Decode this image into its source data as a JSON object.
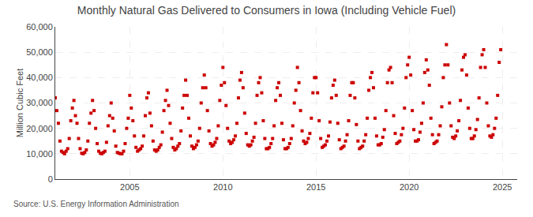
{
  "chart_data": {
    "type": "scatter",
    "title": "Monthly Natural Gas Delivered to Consumers in Iowa (Including Vehicle Fuel)",
    "ylabel": "Million Cubic Feet",
    "annotations": [
      "Source: U.S. Energy Information Administration"
    ],
    "color": "#cc0000",
    "marker": "square",
    "grid": true,
    "xlim": [
      2001.0,
      2025.8
    ],
    "xticks": [
      2005,
      2010,
      2015,
      2020,
      2025
    ],
    "ylim": [
      0,
      60000
    ],
    "yticks": [
      0,
      {
        "value": 10000,
        "label": "10,000"
      },
      {
        "value": 20000,
        "label": "20,000"
      },
      {
        "value": 30000,
        "label": "30,000"
      },
      {
        "value": 40000,
        "label": "40,000"
      },
      {
        "value": 50000,
        "label": "50,000"
      },
      {
        "value": 60000,
        "label": "60,000"
      }
    ],
    "x": [
      2001.0,
      2001.083,
      2001.167,
      2001.25,
      2001.333,
      2001.417,
      2001.5,
      2001.583,
      2001.667,
      2001.75,
      2001.833,
      2001.917,
      2002.0,
      2002.083,
      2002.167,
      2002.25,
      2002.333,
      2002.417,
      2002.5,
      2002.583,
      2002.667,
      2002.75,
      2002.833,
      2002.917,
      2003.0,
      2003.083,
      2003.167,
      2003.25,
      2003.333,
      2003.417,
      2003.5,
      2003.583,
      2003.667,
      2003.75,
      2003.833,
      2003.917,
      2004.0,
      2004.083,
      2004.167,
      2004.25,
      2004.333,
      2004.417,
      2004.5,
      2004.583,
      2004.667,
      2004.75,
      2004.833,
      2004.917,
      2005.0,
      2005.083,
      2005.167,
      2005.25,
      2005.333,
      2005.417,
      2005.5,
      2005.583,
      2005.667,
      2005.75,
      2005.833,
      2005.917,
      2006.0,
      2006.083,
      2006.167,
      2006.25,
      2006.333,
      2006.417,
      2006.5,
      2006.583,
      2006.667,
      2006.75,
      2006.833,
      2006.917,
      2007.0,
      2007.083,
      2007.167,
      2007.25,
      2007.333,
      2007.417,
      2007.5,
      2007.583,
      2007.667,
      2007.75,
      2007.833,
      2007.917,
      2008.0,
      2008.083,
      2008.167,
      2008.25,
      2008.333,
      2008.417,
      2008.5,
      2008.583,
      2008.667,
      2008.75,
      2008.833,
      2008.917,
      2009.0,
      2009.083,
      2009.167,
      2009.25,
      2009.333,
      2009.417,
      2009.5,
      2009.583,
      2009.667,
      2009.75,
      2009.833,
      2009.917,
      2010.0,
      2010.083,
      2010.167,
      2010.25,
      2010.333,
      2010.417,
      2010.5,
      2010.583,
      2010.667,
      2010.75,
      2010.833,
      2010.917,
      2011.0,
      2011.083,
      2011.167,
      2011.25,
      2011.333,
      2011.417,
      2011.5,
      2011.583,
      2011.667,
      2011.75,
      2011.833,
      2011.917,
      2012.0,
      2012.083,
      2012.167,
      2012.25,
      2012.333,
      2012.417,
      2012.5,
      2012.583,
      2012.667,
      2012.75,
      2012.833,
      2012.917,
      2013.0,
      2013.083,
      2013.167,
      2013.25,
      2013.333,
      2013.417,
      2013.5,
      2013.583,
      2013.667,
      2013.75,
      2013.833,
      2013.917,
      2014.0,
      2014.083,
      2014.167,
      2014.25,
      2014.333,
      2014.417,
      2014.5,
      2014.583,
      2014.667,
      2014.75,
      2014.833,
      2014.917,
      2015.0,
      2015.083,
      2015.167,
      2015.25,
      2015.333,
      2015.417,
      2015.5,
      2015.583,
      2015.667,
      2015.75,
      2015.833,
      2015.917,
      2016.0,
      2016.083,
      2016.167,
      2016.25,
      2016.333,
      2016.417,
      2016.5,
      2016.583,
      2016.667,
      2016.75,
      2016.833,
      2016.917,
      2017.0,
      2017.083,
      2017.167,
      2017.25,
      2017.333,
      2017.417,
      2017.5,
      2017.583,
      2017.667,
      2017.75,
      2017.833,
      2017.917,
      2018.0,
      2018.083,
      2018.167,
      2018.25,
      2018.333,
      2018.417,
      2018.5,
      2018.583,
      2018.667,
      2018.75,
      2018.833,
      2018.917,
      2019.0,
      2019.083,
      2019.167,
      2019.25,
      2019.333,
      2019.417,
      2019.5,
      2019.583,
      2019.667,
      2019.75,
      2019.833,
      2019.917,
      2020.0,
      2020.083,
      2020.167,
      2020.25,
      2020.333,
      2020.417,
      2020.5,
      2020.583,
      2020.667,
      2020.75,
      2020.833,
      2020.917,
      2021.0,
      2021.083,
      2021.167,
      2021.25,
      2021.333,
      2021.417,
      2021.5,
      2021.583,
      2021.667,
      2021.75,
      2021.833,
      2021.917,
      2022.0,
      2022.083,
      2022.167,
      2022.25,
      2022.333,
      2022.417,
      2022.5,
      2022.583,
      2022.667,
      2022.75,
      2022.833,
      2022.917,
      2023.0,
      2023.083,
      2023.167,
      2023.25,
      2023.333,
      2023.417,
      2023.5,
      2023.583,
      2023.667,
      2023.75,
      2023.833,
      2023.917,
      2024.0,
      2024.083,
      2024.167,
      2024.25,
      2024.333,
      2024.417,
      2024.5,
      2024.583,
      2024.667,
      2024.75,
      2024.833,
      2024.917
    ],
    "values": [
      32000,
      27000,
      22000,
      15000,
      11000,
      10500,
      10000,
      11000,
      12000,
      16000,
      23000,
      28000,
      31000,
      25000,
      22000,
      16000,
      12000,
      10200,
      10000,
      10500,
      11500,
      15000,
      22000,
      26000,
      31000,
      27000,
      20000,
      14000,
      11000,
      10200,
      10000,
      10500,
      11000,
      14500,
      21000,
      25000,
      30000,
      24000,
      19000,
      13000,
      10500,
      10200,
      10000,
      10000,
      11000,
      14000,
      20000,
      24000,
      33000,
      28000,
      23000,
      17000,
      12500,
      11000,
      11500,
      12000,
      13000,
      17000,
      25000,
      32000,
      34000,
      26000,
      21000,
      15000,
      11500,
      11000,
      11500,
      12500,
      13500,
      18500,
      27000,
      31000,
      35000,
      29000,
      22000,
      16000,
      12500,
      11500,
      12000,
      13000,
      14000,
      19000,
      28000,
      33000,
      39000,
      33000,
      24000,
      17000,
      13000,
      12000,
      12500,
      13500,
      15000,
      20000,
      30000,
      36000,
      41000,
      36000,
      27000,
      19000,
      14000,
      13000,
      13500,
      14500,
      16000,
      21000,
      31000,
      37000,
      44000,
      38000,
      29000,
      20000,
      15000,
      14000,
      14500,
      15500,
      17000,
      22000,
      32000,
      39000,
      42000,
      36000,
      26000,
      18000,
      13500,
      13000,
      13500,
      15000,
      16500,
      22000,
      33000,
      38000,
      40000,
      34000,
      23000,
      16000,
      12000,
      12000,
      12500,
      14000,
      16000,
      21000,
      31000,
      36000,
      38000,
      33000,
      22000,
      15500,
      12000,
      12000,
      12500,
      14000,
      16000,
      21000,
      30000,
      35000,
      44000,
      38000,
      27000,
      19000,
      15000,
      14000,
      14500,
      16000,
      18000,
      24000,
      34000,
      40000,
      40000,
      34000,
      23000,
      16000,
      12500,
      13000,
      13500,
      15000,
      17000,
      22500,
      32000,
      37000,
      39000,
      33000,
      22000,
      15500,
      12000,
      12500,
      13000,
      15000,
      17500,
      23000,
      33000,
      38000,
      38000,
      32000,
      21500,
      15000,
      12000,
      12500,
      13000,
      15000,
      17500,
      24000,
      35000,
      40000,
      42000,
      36000,
      24000,
      17000,
      13500,
      13500,
      14000,
      16500,
      19500,
      27000,
      38000,
      43000,
      44000,
      38000,
      25000,
      18000,
      14000,
      14500,
      15000,
      17500,
      20000,
      28000,
      40000,
      45000,
      48000,
      41000,
      27000,
      19500,
      15000,
      15000,
      15500,
      18500,
      22000,
      30000,
      42000,
      47000,
      43000,
      37000,
      24000,
      17500,
      14000,
      14500,
      15000,
      17500,
      21000,
      28500,
      40000,
      45000,
      53000,
      45000,
      30000,
      21000,
      16500,
      16000,
      17000,
      19000,
      23000,
      31000,
      43000,
      48000,
      49000,
      41000,
      28000,
      20000,
      16000,
      16000,
      17000,
      19500,
      23500,
      32000,
      44000,
      49000,
      51000,
      44000,
      30000,
      21000,
      17000,
      16500,
      17500,
      20000,
      24000,
      33000,
      46000,
      51000
    ]
  }
}
